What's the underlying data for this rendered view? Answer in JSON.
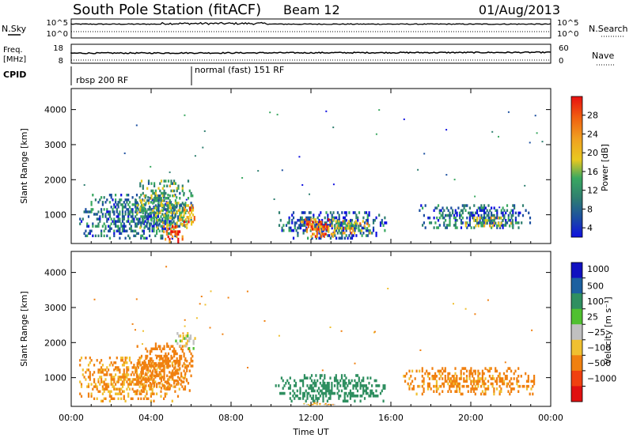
{
  "header": {
    "title": "South Pole Station (fitACF)",
    "beam": "Beam 12",
    "date": "01/Aug/2013"
  },
  "status_panels": {
    "nsky_label": "N.Sky",
    "freq_label_1": "Freq.",
    "freq_label_2": "[MHz]",
    "cpid_label": "CPID",
    "nsearch_label": "N.Search",
    "nave_label": "Nave",
    "left_ticks_noise": [
      "10^5",
      "10^0"
    ],
    "right_ticks_noise": [
      "10^5",
      "10^0"
    ],
    "left_ticks_freq": [
      "18",
      "8"
    ],
    "right_ticks_nave": [
      "60",
      "0"
    ],
    "cpid_segments": [
      {
        "label": "rbsp 200 RF",
        "start": "00:00",
        "end": "06:00"
      },
      {
        "label": "normal (fast) 151 RF",
        "start": "06:00",
        "end": "24:00"
      }
    ]
  },
  "chart_data": [
    {
      "type": "heatmap",
      "title": "",
      "xlabel": "",
      "ylabel": "Slant Range [km]",
      "x_ticks": [
        "00:00",
        "04:00",
        "08:00",
        "12:00",
        "16:00",
        "20:00",
        "00:00"
      ],
      "y_ticks": [
        "1000",
        "2000",
        "3000",
        "4000"
      ],
      "xlim_hours": [
        0,
        24
      ],
      "ylim": [
        180,
        4600
      ],
      "colorbar": {
        "label": "Power [dB]",
        "ticks": [
          "4",
          "8",
          "12",
          "16",
          "20",
          "24",
          "28"
        ],
        "colors": [
          "#1010e0",
          "#1c4fa0",
          "#2f7f70",
          "#3aa860",
          "#e8c820",
          "#f0a020",
          "#f06010",
          "#e81010"
        ]
      },
      "patches": [
        {
          "t0": 0.4,
          "t1": 5.8,
          "r0": 300,
          "r1": 1600,
          "value": 10
        },
        {
          "t0": 3.2,
          "t1": 6.1,
          "r0": 600,
          "r1": 2000,
          "value": 14
        },
        {
          "t0": 4.6,
          "t1": 5.6,
          "r0": 200,
          "r1": 700,
          "value": 26
        },
        {
          "t0": 5.4,
          "t1": 6.2,
          "r0": 700,
          "r1": 1300,
          "value": 22
        },
        {
          "t0": 10.3,
          "t1": 15.8,
          "r0": 300,
          "r1": 1100,
          "value": 8
        },
        {
          "t0": 11.4,
          "t1": 13.2,
          "r0": 350,
          "r1": 900,
          "value": 24
        },
        {
          "t0": 13.0,
          "t1": 15.2,
          "r0": 450,
          "r1": 850,
          "value": 18
        },
        {
          "t0": 17.4,
          "t1": 23.0,
          "r0": 600,
          "r1": 1300,
          "value": 9
        },
        {
          "t0": 19.5,
          "t1": 22.4,
          "r0": 650,
          "r1": 950,
          "value": 16
        }
      ]
    },
    {
      "type": "heatmap",
      "title": "",
      "xlabel": "Time UT",
      "ylabel": "Slant Range [km]",
      "x_ticks": [
        "00:00",
        "04:00",
        "08:00",
        "12:00",
        "16:00",
        "20:00",
        "00:00"
      ],
      "y_ticks": [
        "1000",
        "2000",
        "3000",
        "4000"
      ],
      "xlim_hours": [
        0,
        24
      ],
      "ylim": [
        180,
        4600
      ],
      "colorbar": {
        "label": "Velocity [m s⁻¹]",
        "ticks": [
          "1000",
          "500",
          "100",
          "25",
          "−25",
          "−100",
          "−500",
          "−1000"
        ],
        "colors": [
          "#1010c0",
          "#1c60a0",
          "#2f8f60",
          "#50c030",
          "#c0c0c0",
          "#f0c030",
          "#f08010",
          "#f04010",
          "#e01010"
        ]
      },
      "patches": [
        {
          "t0": 0.4,
          "t1": 5.8,
          "r0": 300,
          "r1": 1600,
          "value": -120
        },
        {
          "t0": 3.2,
          "t1": 6.1,
          "r0": 600,
          "r1": 2000,
          "value": -180
        },
        {
          "t0": 5.2,
          "t1": 6.3,
          "r0": 1800,
          "r1": 2300,
          "value": 0
        },
        {
          "t0": 10.2,
          "t1": 15.8,
          "r0": 300,
          "r1": 1100,
          "value": 200
        },
        {
          "t0": 11.4,
          "t1": 13.2,
          "r0": 200,
          "r1": 300,
          "value": -60
        },
        {
          "t0": 16.6,
          "t1": 23.2,
          "r0": 500,
          "r1": 1300,
          "value": -150
        }
      ]
    }
  ]
}
